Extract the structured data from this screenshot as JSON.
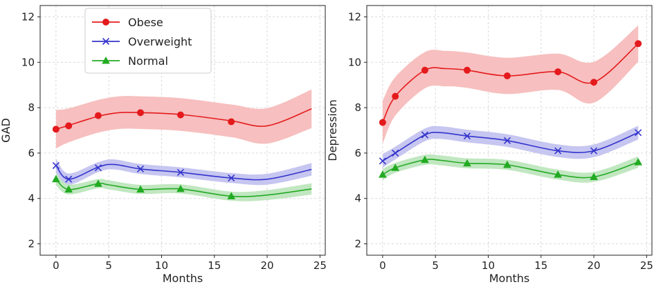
{
  "chart_data": [
    {
      "type": "line",
      "xlabel": "Months",
      "ylabel": "GAD",
      "xlim": [
        -1.5,
        25.5
      ],
      "ylim": [
        1.5,
        12.5
      ],
      "xticks": [
        0,
        5,
        10,
        15,
        20,
        25
      ],
      "yticks": [
        2,
        4,
        6,
        8,
        10,
        12
      ],
      "grid": true,
      "legend": "top-left",
      "series": [
        {
          "name": "Obese",
          "color": "#e41a1c",
          "marker": "circle",
          "x": [
            0,
            1.2,
            4,
            8,
            11.8,
            16.6
          ],
          "y": [
            7.05,
            7.2,
            7.65,
            7.78,
            7.68,
            7.38
          ],
          "curve": [
            [
              0,
              7.05
            ],
            [
              1.2,
              7.22
            ],
            [
              4,
              7.62
            ],
            [
              6,
              7.78
            ],
            [
              8,
              7.78
            ],
            [
              11.8,
              7.7
            ],
            [
              16.6,
              7.42
            ],
            [
              20,
              7.2
            ],
            [
              24.2,
              7.95
            ]
          ],
          "band": [
            0.85,
            0.75,
            0.72,
            0.72,
            0.72,
            0.72,
            0.72,
            0.78,
            0.85
          ]
        },
        {
          "name": "Overweight",
          "color": "#3333cc",
          "marker": "x",
          "x": [
            0,
            1.2,
            4,
            8,
            11.8,
            16.6
          ],
          "y": [
            5.45,
            4.85,
            5.35,
            5.3,
            5.15,
            4.9
          ],
          "curve": [
            [
              0,
              5.45
            ],
            [
              1.2,
              4.85
            ],
            [
              4,
              5.38
            ],
            [
              5.5,
              5.5
            ],
            [
              8,
              5.3
            ],
            [
              11.8,
              5.15
            ],
            [
              16.6,
              4.9
            ],
            [
              20,
              4.85
            ],
            [
              24.2,
              5.28
            ]
          ],
          "band": [
            0.3,
            0.25,
            0.22,
            0.22,
            0.22,
            0.22,
            0.22,
            0.24,
            0.28
          ]
        },
        {
          "name": "Normal",
          "color": "#22aa22",
          "marker": "triangle",
          "x": [
            0,
            1.2,
            4,
            8,
            11.8,
            16.6
          ],
          "y": [
            4.85,
            4.4,
            4.65,
            4.4,
            4.42,
            4.1
          ],
          "curve": [
            [
              0,
              4.85
            ],
            [
              1.2,
              4.4
            ],
            [
              4,
              4.65
            ],
            [
              5,
              4.6
            ],
            [
              8,
              4.4
            ],
            [
              11.8,
              4.42
            ],
            [
              16.6,
              4.1
            ],
            [
              20,
              4.15
            ],
            [
              24.2,
              4.42
            ]
          ],
          "band": [
            0.28,
            0.22,
            0.2,
            0.2,
            0.2,
            0.2,
            0.2,
            0.22,
            0.25
          ]
        }
      ]
    },
    {
      "type": "line",
      "xlabel": "Months",
      "ylabel": "Depression",
      "xlim": [
        -1.5,
        25.5
      ],
      "ylim": [
        1.5,
        12.5
      ],
      "xticks": [
        0,
        5,
        10,
        15,
        20,
        25
      ],
      "yticks": [
        2,
        4,
        6,
        8,
        10,
        12
      ],
      "grid": true,
      "series": [
        {
          "name": "Obese",
          "color": "#e41a1c",
          "marker": "circle",
          "x": [
            0,
            1.2,
            4,
            8,
            11.8,
            16.6,
            20,
            24.2
          ],
          "y": [
            7.35,
            8.5,
            9.65,
            9.65,
            9.4,
            9.58,
            9.12,
            10.82
          ],
          "curve": [
            [
              0,
              7.35
            ],
            [
              1.2,
              8.5
            ],
            [
              4,
              9.65
            ],
            [
              6,
              9.72
            ],
            [
              8,
              9.65
            ],
            [
              11.8,
              9.4
            ],
            [
              16.6,
              9.58
            ],
            [
              20,
              9.12
            ],
            [
              24.2,
              10.82
            ]
          ],
          "band": [
            0.95,
            0.85,
            0.8,
            0.78,
            0.78,
            0.8,
            0.8,
            0.9,
            0.8
          ]
        },
        {
          "name": "Overweight",
          "color": "#3333cc",
          "marker": "x",
          "x": [
            0,
            1.2,
            4,
            8,
            11.8,
            16.6,
            20,
            24.2
          ],
          "y": [
            5.65,
            6.0,
            6.8,
            6.75,
            6.55,
            6.1,
            6.1,
            6.9
          ],
          "curve": [
            [
              0,
              5.65
            ],
            [
              1.2,
              6.0
            ],
            [
              4,
              6.8
            ],
            [
              5.5,
              6.9
            ],
            [
              8,
              6.75
            ],
            [
              11.8,
              6.55
            ],
            [
              16.6,
              6.1
            ],
            [
              20,
              6.1
            ],
            [
              24.2,
              6.9
            ]
          ],
          "band": [
            0.3,
            0.28,
            0.28,
            0.28,
            0.28,
            0.28,
            0.28,
            0.28,
            0.3
          ]
        },
        {
          "name": "Normal",
          "color": "#22aa22",
          "marker": "triangle",
          "x": [
            0,
            1.2,
            4,
            8,
            11.8,
            16.6,
            20,
            24.2
          ],
          "y": [
            5.05,
            5.35,
            5.7,
            5.55,
            5.48,
            5.05,
            4.95,
            5.6
          ],
          "curve": [
            [
              0,
              5.05
            ],
            [
              1.2,
              5.35
            ],
            [
              4,
              5.7
            ],
            [
              5.5,
              5.68
            ],
            [
              8,
              5.55
            ],
            [
              11.8,
              5.48
            ],
            [
              16.6,
              5.05
            ],
            [
              20,
              4.95
            ],
            [
              24.2,
              5.6
            ]
          ],
          "band": [
            0.25,
            0.22,
            0.22,
            0.22,
            0.22,
            0.22,
            0.22,
            0.22,
            0.25
          ]
        }
      ]
    }
  ]
}
